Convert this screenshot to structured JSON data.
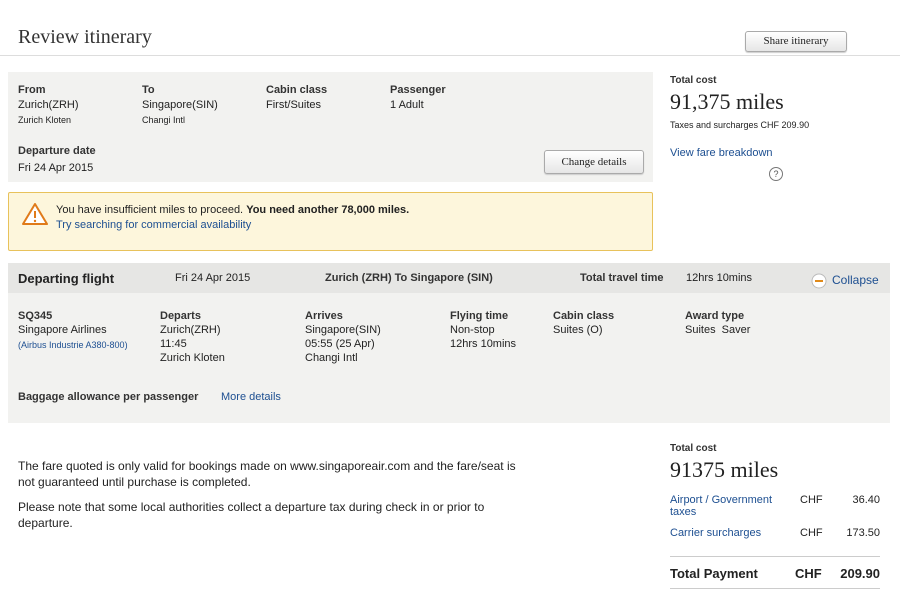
{
  "header": {
    "title": "Review itinerary",
    "share_button": "Share itinerary"
  },
  "search": {
    "fields": [
      {
        "label": "From",
        "value": "Zurich(ZRH)",
        "detail": "Zurich Kloten"
      },
      {
        "label": "To",
        "value": "Singapore(SIN)",
        "detail": "Changi Intl"
      },
      {
        "label": "Cabin class",
        "value": "First/Suites"
      },
      {
        "label": "Passenger",
        "value": "1 Adult"
      }
    ],
    "departure_label": "Departure date",
    "departure_value": "Fri 24 Apr 2015",
    "change_button": "Change details"
  },
  "cost": {
    "label": "Total cost",
    "amount": "91,375 miles",
    "taxes": "Taxes and surcharges CHF 209.90",
    "breakdown_link": "View fare breakdown",
    "help": "?"
  },
  "warning": {
    "message": "You have insufficient miles to proceed.",
    "message_bold": "You need another 78,000 miles.",
    "link": "Try searching for commercial availability"
  },
  "flight": {
    "header": {
      "title": "Departing flight",
      "date": "Fri 24 Apr 2015",
      "route": "Zurich (ZRH) To Singapore (SIN)",
      "travel_time_label": "Total travel time",
      "travel_time": "12hrs 10mins",
      "collapse": "Collapse"
    },
    "columns": [
      {
        "label": "SQ345",
        "lines": [
          "Singapore Airlines",
          "(Airbus Industrie A380-800)"
        ]
      },
      {
        "label": "Departs",
        "lines": [
          "Zurich(ZRH)",
          "11:45",
          "Zurich Kloten"
        ]
      },
      {
        "label": "Arrives",
        "lines": [
          "Singapore(SIN)",
          "05:55 (25 Apr)",
          "Changi Intl"
        ]
      },
      {
        "label": "Flying time",
        "lines": [
          "Non-stop",
          "12hrs 10mins"
        ]
      },
      {
        "label": "Cabin class",
        "lines": [
          "Suites (O)"
        ]
      },
      {
        "label": "Award type",
        "lines": [
          "Suites  Saver"
        ]
      }
    ],
    "baggage_label": "Baggage allowance per passenger",
    "baggage_link": "More details"
  },
  "notes": [
    "The fare quoted is only valid for bookings made on www.singaporeair.com and the fare/seat is not guaranteed until purchase is completed.",
    "Please note that some local authorities collect a departure tax during check in or prior to departure."
  ],
  "summary": {
    "label": "Total cost",
    "amount": "91375 miles",
    "rows": [
      [
        "Airport / Government taxes",
        "CHF",
        "36.40"
      ],
      [
        "Carrier surcharges",
        "CHF",
        "173.50"
      ]
    ],
    "total": [
      "Total Payment",
      "CHF",
      "209.90"
    ]
  }
}
